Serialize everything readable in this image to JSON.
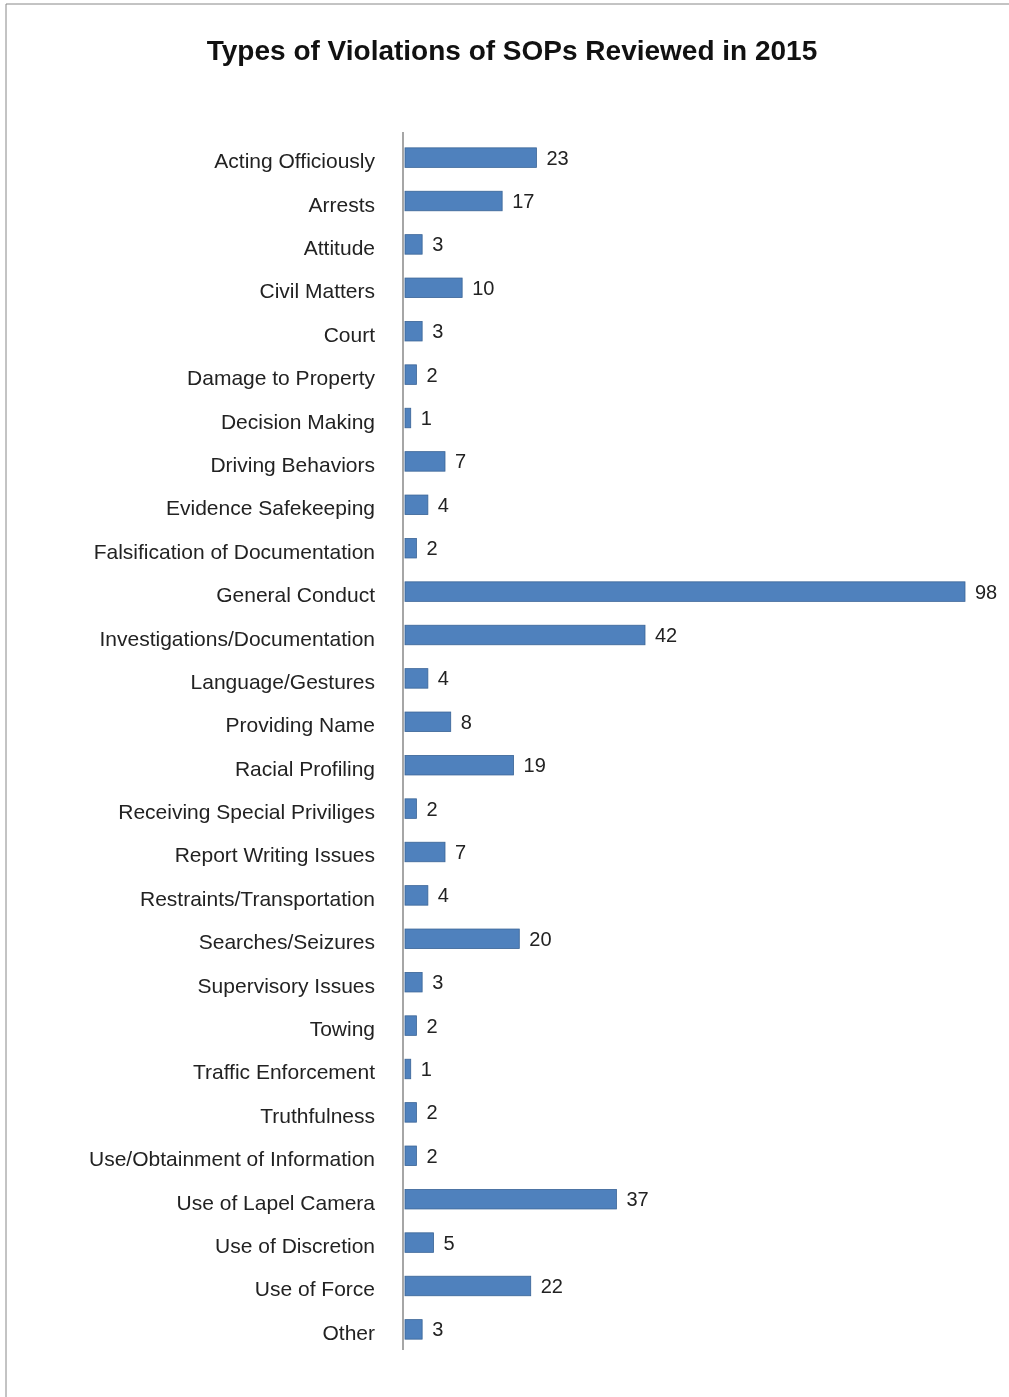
{
  "chart_data": {
    "type": "bar",
    "orientation": "horizontal",
    "title": "Types of Violations of SOPs Reviewed in 2015",
    "categories": [
      "Acting Officiously",
      "Arrests",
      "Attitude",
      "Civil Matters",
      "Court",
      "Damage to Property",
      "Decision Making",
      "Driving Behaviors",
      "Evidence Safekeeping",
      "Falsification of Documentation",
      "General Conduct",
      "Investigations/Documentation",
      "Language/Gestures",
      "Providing Name",
      "Racial Profiling",
      "Receiving Special Priviliges",
      "Report Writing Issues",
      "Restraints/Transportation",
      "Searches/Seizures",
      "Supervisory Issues",
      "Towing",
      "Traffic Enforcement",
      "Truthfulness",
      "Use/Obtainment of Information",
      "Use of Lapel Camera",
      "Use of Discretion",
      "Use of Force",
      "Other"
    ],
    "values": [
      23,
      17,
      3,
      10,
      3,
      2,
      1,
      7,
      4,
      2,
      98,
      42,
      4,
      8,
      19,
      2,
      7,
      4,
      20,
      3,
      2,
      1,
      2,
      2,
      37,
      5,
      22,
      3
    ],
    "color": "#4f81bd",
    "data_labels": true,
    "grid": false
  }
}
